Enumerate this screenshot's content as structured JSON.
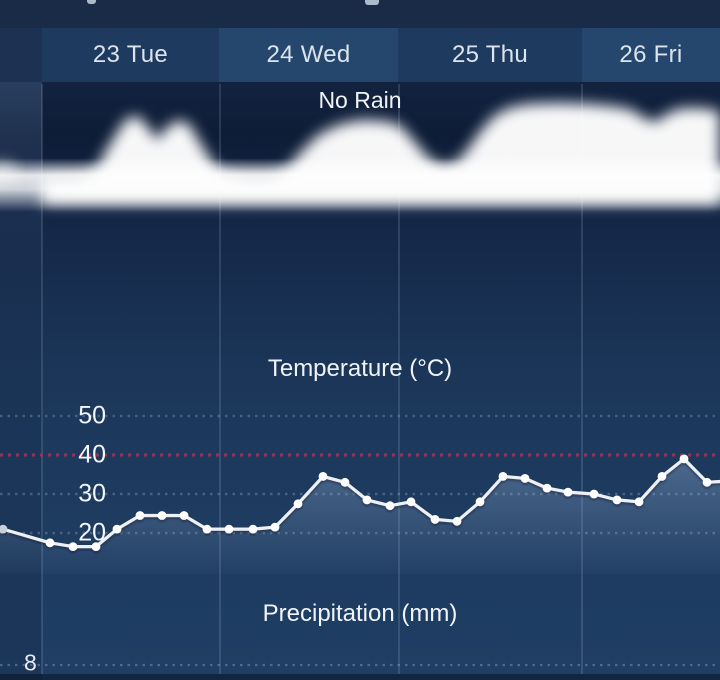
{
  "header": {
    "days": [
      {
        "label": "23 Tue",
        "shade": "dark"
      },
      {
        "label": "24 Wed",
        "shade": "light"
      },
      {
        "label": "25 Thu",
        "shade": "dark"
      },
      {
        "label": "26 Fri",
        "shade": "light"
      }
    ]
  },
  "labels": {
    "no_rain": "No Rain",
    "temperature_title": "Temperature (°C)",
    "precipitation_title": "Precipitation (mm)"
  },
  "temperature_axis": {
    "ticks": [
      "50",
      "40",
      "30",
      "20"
    ],
    "threshold_value": "40"
  },
  "precipitation_axis": {
    "tick": "8"
  },
  "colors": {
    "threshold_red": "#9e3353",
    "line_white": "#edf1f6",
    "grid_dot": "#9fb4ca",
    "cloud_white": "#ffffff",
    "bg_navy": "#1d3a5e"
  },
  "chart_data": {
    "type": "line",
    "title": "Temperature (°C)",
    "categories": [
      "23 Tue",
      "24 Wed",
      "25 Thu",
      "26 Fri"
    ],
    "ylabel": "Temperature (°C)",
    "y_ticks": [
      20,
      30,
      40,
      50
    ],
    "threshold": 40,
    "points_per_day": 8,
    "note": "points are [x_px, temp_C]; ~3-hour spacing, first/last partially off-screen",
    "series": [
      {
        "name": "temperature",
        "points": [
          [
            3,
            21
          ],
          [
            50,
            17.5
          ],
          [
            73,
            16.5
          ],
          [
            96,
            16.5
          ],
          [
            117,
            21
          ],
          [
            140,
            24.5
          ],
          [
            162,
            24.5
          ],
          [
            184,
            24.5
          ],
          [
            207,
            21
          ],
          [
            229,
            21
          ],
          [
            253,
            21
          ],
          [
            275,
            21.5
          ],
          [
            298,
            27.5
          ],
          [
            323,
            34.5
          ],
          [
            345,
            33
          ],
          [
            367,
            28.5
          ],
          [
            390,
            27
          ],
          [
            411,
            28
          ],
          [
            435,
            23.5
          ],
          [
            457,
            23
          ],
          [
            480,
            28
          ],
          [
            503,
            34.5
          ],
          [
            525,
            34
          ],
          [
            547,
            31.5
          ],
          [
            568,
            30.5
          ],
          [
            594,
            30
          ],
          [
            617,
            28.5
          ],
          [
            639,
            28
          ],
          [
            662,
            34.5
          ],
          [
            684,
            39
          ],
          [
            707,
            33
          ]
        ],
        "lead_in": [
          0,
          21.2
        ],
        "lead_out": [
          720,
          33.2
        ]
      }
    ],
    "precipitation": {
      "summary": "No Rain",
      "visible_tick_mm": 8
    },
    "cloud_cover_profile": [
      [
        42,
        178
      ],
      [
        80,
        177
      ],
      [
        95,
        171
      ],
      [
        110,
        144
      ],
      [
        126,
        119
      ],
      [
        138,
        116
      ],
      [
        148,
        127
      ],
      [
        157,
        140
      ],
      [
        167,
        127
      ],
      [
        179,
        120
      ],
      [
        190,
        125
      ],
      [
        200,
        143
      ],
      [
        212,
        162
      ],
      [
        222,
        173
      ],
      [
        248,
        177
      ],
      [
        268,
        177
      ],
      [
        285,
        171
      ],
      [
        300,
        153
      ],
      [
        318,
        135
      ],
      [
        338,
        125
      ],
      [
        360,
        120
      ],
      [
        384,
        121
      ],
      [
        400,
        125
      ],
      [
        414,
        141
      ],
      [
        428,
        158
      ],
      [
        443,
        166
      ],
      [
        457,
        162
      ],
      [
        469,
        148
      ],
      [
        479,
        133
      ],
      [
        494,
        116
      ],
      [
        509,
        108
      ],
      [
        528,
        104
      ],
      [
        558,
        103
      ],
      [
        588,
        104
      ],
      [
        610,
        106
      ],
      [
        630,
        109
      ],
      [
        644,
        118
      ],
      [
        656,
        122
      ],
      [
        668,
        113
      ],
      [
        683,
        108
      ],
      [
        700,
        108
      ],
      [
        720,
        111
      ]
    ]
  }
}
